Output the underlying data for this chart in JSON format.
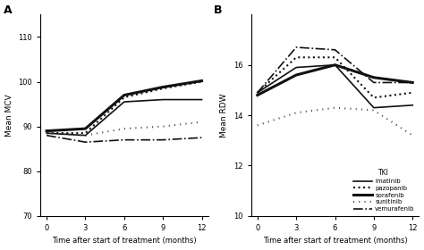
{
  "time_points": [
    0,
    3,
    6,
    9,
    12
  ],
  "mcv": {
    "imatinib": [
      88.5,
      88.0,
      95.5,
      96.0,
      96.0
    ],
    "pazopanib": [
      88.5,
      88.5,
      96.5,
      98.5,
      100.0
    ],
    "sorafenib": [
      89.0,
      89.5,
      97.0,
      98.8,
      100.2
    ],
    "sunitinib": [
      88.5,
      88.0,
      89.5,
      90.0,
      91.0
    ],
    "vemurafenib": [
      88.0,
      86.5,
      87.0,
      87.0,
      87.5
    ]
  },
  "rdw": {
    "imatinib": [
      14.9,
      15.9,
      16.0,
      14.3,
      14.4
    ],
    "pazopanib": [
      14.9,
      16.3,
      16.3,
      14.7,
      14.9
    ],
    "sorafenib": [
      14.8,
      15.6,
      16.0,
      15.5,
      15.3
    ],
    "sunitinib": [
      13.6,
      14.1,
      14.3,
      14.2,
      13.2
    ],
    "vemurafenib": [
      14.9,
      16.7,
      16.6,
      15.3,
      15.3
    ]
  },
  "line_styles": {
    "imatinib": {
      "ls": "-",
      "lw": 1.2,
      "color": "#111111"
    },
    "pazopanib": {
      "ls": ":",
      "lw": 1.4,
      "color": "#111111"
    },
    "sorafenib": {
      "ls": "-",
      "lw": 2.0,
      "color": "#111111"
    },
    "sunitinib": {
      "ls": ":",
      "lw": 1.8,
      "color": "#555555",
      "dashes": [
        1,
        2
      ]
    },
    "vemurafenib": {
      "ls": "-.",
      "lw": 1.2,
      "color": "#111111"
    }
  },
  "legend_labels": [
    "TKI",
    "imatinib",
    "pazopanib",
    "sorafenib",
    "sunitinib",
    "vemurafenib"
  ],
  "mcv_ylim": [
    70,
    115
  ],
  "mcv_yticks": [
    70,
    80,
    90,
    100,
    110
  ],
  "rdw_ylim": [
    10,
    18
  ],
  "rdw_yticks": [
    10,
    12,
    14,
    16
  ],
  "xlabel": "Time after start of treatment (months)",
  "mcv_ylabel": "Mean MCV",
  "rdw_ylabel": "Mean RDW",
  "xticks": [
    0,
    3,
    6,
    9,
    12
  ],
  "panel_A": "A",
  "panel_B": "B"
}
